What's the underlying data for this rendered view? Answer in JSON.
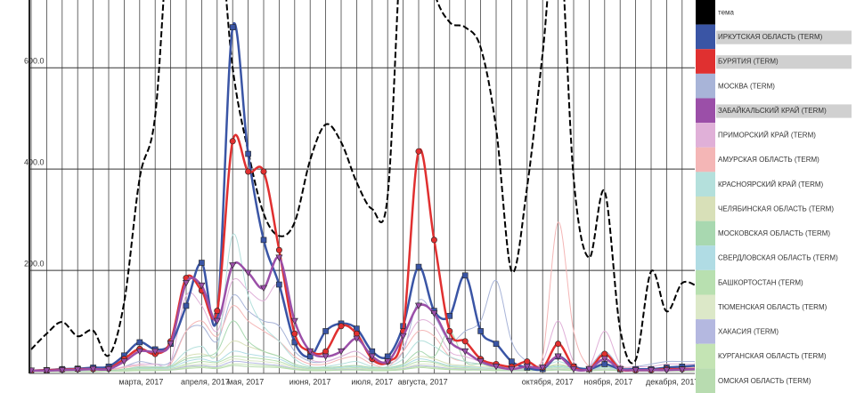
{
  "chart_data": {
    "type": "line",
    "categories": [
      null,
      null,
      null,
      null,
      null,
      null,
      "марта, 2017",
      null,
      null,
      null,
      "апреля, 2017",
      null,
      null,
      "мая, 2017",
      null,
      null,
      null,
      "июня, 2017",
      null,
      null,
      null,
      "июля, 2017",
      null,
      null,
      "августа, 2017",
      null,
      null,
      null,
      null,
      null,
      null,
      null,
      "октября, 2017",
      null,
      null,
      null,
      "ноября, 2017",
      null,
      null,
      null,
      "декабря, 2017",
      null,
      null,
      null
    ],
    "ylim": [
      0,
      725
    ],
    "yticks": [
      {
        "value": 200,
        "label": "200.0"
      },
      {
        "value": 400,
        "label": "400.0"
      },
      {
        "value": 600,
        "label": "600.0"
      }
    ],
    "grid": true,
    "series": [
      {
        "name": "тема",
        "color": "#000000",
        "line_width": 2,
        "dash": true,
        "marker": null,
        "values": [
          44,
          75,
          98,
          70,
          81,
          32,
          137,
          382,
          505,
          900,
          800,
          760,
          900,
          600,
          435,
          312,
          268,
          295,
          418,
          488,
          453,
          374,
          321,
          347,
          900,
          900,
          750,
          690,
          680,
          640,
          480,
          198,
          365,
          628,
          900,
          382,
          225,
          356,
          84,
          23,
          198,
          119,
          175,
          168
        ]
      },
      {
        "name": "ИРКУТСКАЯ ОБЛАСТЬ (TERM)",
        "color": "#3a55a5",
        "line_width": 2.5,
        "dash": false,
        "marker": "square",
        "values": [
          2,
          3,
          5,
          6,
          8,
          10,
          32,
          58,
          44,
          55,
          130,
          215,
          110,
          680,
          430,
          260,
          172,
          58,
          30,
          80,
          95,
          85,
          40,
          30,
          90,
          207,
          120,
          110,
          190,
          80,
          55,
          20,
          8,
          5,
          30,
          10,
          5,
          15,
          5,
          5,
          5,
          8,
          10,
          12
        ]
      },
      {
        "name": "БУРЯТИЯ (TERM)",
        "color": "#e03030",
        "line_width": 2.5,
        "dash": false,
        "marker": "circle",
        "values": [
          2,
          3,
          4,
          5,
          5,
          6,
          25,
          45,
          35,
          60,
          185,
          160,
          120,
          455,
          395,
          395,
          240,
          75,
          40,
          40,
          90,
          75,
          25,
          20,
          80,
          435,
          260,
          80,
          60,
          25,
          15,
          10,
          20,
          8,
          55,
          10,
          5,
          35,
          5,
          3,
          3,
          5,
          5,
          5
        ]
      },
      {
        "name": "МОСКВА (TERM)",
        "color": "#a8b4d8",
        "line_width": 1,
        "dash": false,
        "marker": null,
        "values": [
          1,
          2,
          2,
          3,
          3,
          4,
          10,
          20,
          15,
          20,
          80,
          90,
          60,
          150,
          120,
          100,
          90,
          40,
          20,
          20,
          30,
          40,
          20,
          15,
          40,
          140,
          110,
          60,
          80,
          100,
          180,
          60,
          20,
          10,
          30,
          10,
          10,
          40,
          10,
          10,
          15,
          20,
          20,
          20
        ]
      },
      {
        "name": "ЗАБАЙКАЛЬСКИЙ КРАЙ (TERM)",
        "color": "#9b4fa8",
        "line_width": 2.5,
        "dash": false,
        "marker": "triangle",
        "values": [
          2,
          2,
          3,
          4,
          5,
          5,
          20,
          40,
          40,
          55,
          175,
          170,
          100,
          210,
          195,
          165,
          225,
          100,
          40,
          30,
          40,
          65,
          30,
          20,
          70,
          130,
          115,
          60,
          40,
          20,
          10,
          5,
          10,
          8,
          30,
          5,
          5,
          25,
          5,
          3,
          3,
          3,
          4,
          5
        ]
      },
      {
        "name": "ПРИМОРСКИЙ КРАЙ (TERM)",
        "color": "#e0b0d8",
        "line_width": 1,
        "dash": false,
        "marker": null,
        "values": [
          1,
          1,
          2,
          2,
          3,
          3,
          10,
          15,
          15,
          20,
          150,
          130,
          80,
          180,
          160,
          140,
          170,
          60,
          25,
          20,
          30,
          40,
          20,
          15,
          50,
          100,
          90,
          40,
          30,
          20,
          15,
          10,
          10,
          20,
          100,
          20,
          10,
          80,
          15,
          10,
          10,
          15,
          15,
          15
        ]
      },
      {
        "name": "АМУРСКАЯ ОБЛАСТЬ (TERM)",
        "color": "#f4b6b6",
        "line_width": 1,
        "dash": false,
        "marker": null,
        "values": [
          1,
          1,
          1,
          2,
          2,
          3,
          8,
          12,
          10,
          15,
          80,
          100,
          70,
          130,
          100,
          80,
          60,
          30,
          15,
          15,
          25,
          30,
          15,
          10,
          40,
          80,
          70,
          30,
          20,
          15,
          10,
          10,
          20,
          30,
          295,
          80,
          10,
          20,
          10,
          5,
          5,
          8,
          8,
          8
        ]
      },
      {
        "name": "КРАСНОЯРСКИЙ КРАЙ (TERM)",
        "color": "#b4e0dc",
        "line_width": 1,
        "dash": false,
        "marker": null,
        "values": [
          1,
          1,
          1,
          2,
          2,
          2,
          5,
          10,
          10,
          12,
          40,
          50,
          40,
          270,
          150,
          90,
          60,
          25,
          10,
          10,
          15,
          20,
          10,
          10,
          25,
          60,
          50,
          30,
          20,
          15,
          10,
          8,
          8,
          10,
          20,
          10,
          8,
          15,
          8,
          5,
          5,
          5,
          5,
          5
        ]
      },
      {
        "name": "ЧЕЛЯБИНСКАЯ ОБЛАСТЬ (TERM)",
        "color": "#d8e0b8",
        "line_width": 1,
        "dash": false,
        "marker": null,
        "values": [
          1,
          1,
          1,
          1,
          2,
          2,
          4,
          8,
          8,
          10,
          30,
          35,
          30,
          60,
          50,
          40,
          30,
          15,
          8,
          8,
          10,
          12,
          8,
          8,
          15,
          30,
          25,
          15,
          12,
          10,
          8,
          6,
          6,
          8,
          15,
          8,
          6,
          10,
          6,
          4,
          4,
          4,
          4,
          4
        ]
      },
      {
        "name": "МОСКОВСКАЯ ОБЛАСТЬ (TERM)",
        "color": "#a8d8b0",
        "line_width": 1,
        "dash": false,
        "marker": null,
        "values": [
          1,
          1,
          1,
          2,
          2,
          2,
          5,
          8,
          8,
          10,
          25,
          30,
          40,
          100,
          60,
          40,
          30,
          15,
          8,
          8,
          10,
          12,
          8,
          8,
          15,
          40,
          30,
          80,
          20,
          15,
          8,
          6,
          6,
          8,
          12,
          8,
          6,
          10,
          6,
          4,
          4,
          4,
          4,
          4
        ]
      },
      {
        "name": "СВЕРДЛОВСКАЯ ОБЛАСТЬ (TERM)",
        "color": "#b0dce4",
        "line_width": 1,
        "dash": false,
        "marker": null,
        "values": [
          0,
          0,
          1,
          1,
          1,
          1,
          3,
          6,
          6,
          8,
          20,
          25,
          20,
          40,
          35,
          30,
          25,
          12,
          6,
          6,
          8,
          10,
          6,
          6,
          12,
          25,
          20,
          12,
          10,
          8,
          6,
          5,
          5,
          6,
          10,
          6,
          5,
          8,
          5,
          3,
          3,
          3,
          3,
          3
        ]
      },
      {
        "name": "БАШКОРТОСТАН (TERM)",
        "color": "#b8e0b0",
        "line_width": 1,
        "dash": false,
        "marker": null,
        "values": [
          0,
          0,
          1,
          1,
          1,
          1,
          3,
          5,
          5,
          6,
          15,
          20,
          18,
          30,
          28,
          25,
          20,
          10,
          5,
          5,
          6,
          8,
          5,
          5,
          10,
          20,
          18,
          10,
          8,
          6,
          5,
          4,
          4,
          5,
          8,
          5,
          4,
          6,
          4,
          3,
          3,
          3,
          3,
          3
        ]
      },
      {
        "name": "ТЮМЕНСКАЯ ОБЛАСТЬ (TERM)",
        "color": "#dce8c8",
        "line_width": 1,
        "dash": false,
        "marker": null,
        "values": [
          0,
          0,
          0,
          1,
          1,
          1,
          2,
          4,
          4,
          5,
          12,
          15,
          14,
          25,
          22,
          20,
          16,
          8,
          4,
          4,
          5,
          6,
          4,
          4,
          8,
          15,
          14,
          8,
          6,
          5,
          4,
          3,
          3,
          4,
          6,
          4,
          3,
          5,
          3,
          2,
          2,
          2,
          2,
          2
        ]
      },
      {
        "name": "ХАКАСИЯ (TERM)",
        "color": "#b4b8e0",
        "line_width": 1,
        "dash": false,
        "marker": null,
        "values": [
          0,
          0,
          0,
          1,
          1,
          1,
          2,
          3,
          3,
          4,
          10,
          12,
          10,
          20,
          18,
          15,
          12,
          6,
          3,
          3,
          4,
          5,
          3,
          3,
          6,
          12,
          10,
          6,
          5,
          4,
          3,
          3,
          3,
          3,
          5,
          3,
          3,
          4,
          3,
          2,
          2,
          2,
          2,
          2
        ]
      },
      {
        "name": "КУРГАНСКАЯ ОБЛАСТЬ (TERM)",
        "color": "#c4e4b4",
        "line_width": 1,
        "dash": false,
        "marker": null,
        "values": [
          0,
          0,
          0,
          0,
          1,
          1,
          2,
          3,
          3,
          3,
          8,
          10,
          8,
          15,
          14,
          12,
          10,
          5,
          3,
          3,
          3,
          4,
          3,
          3,
          5,
          10,
          8,
          5,
          4,
          3,
          3,
          2,
          2,
          3,
          4,
          3,
          2,
          3,
          2,
          2,
          2,
          2,
          2,
          2
        ]
      },
      {
        "name": "ОМСКАЯ ОБЛАСТЬ (TERM)",
        "color": "#b8dcb0",
        "line_width": 1,
        "dash": false,
        "marker": null,
        "values": [
          0,
          0,
          0,
          0,
          0,
          1,
          1,
          2,
          2,
          3,
          6,
          8,
          6,
          12,
          10,
          9,
          8,
          4,
          2,
          2,
          3,
          3,
          2,
          2,
          4,
          8,
          6,
          4,
          3,
          3,
          2,
          2,
          2,
          2,
          3,
          2,
          2,
          3,
          2,
          1,
          1,
          1,
          1,
          1
        ]
      }
    ]
  }
}
